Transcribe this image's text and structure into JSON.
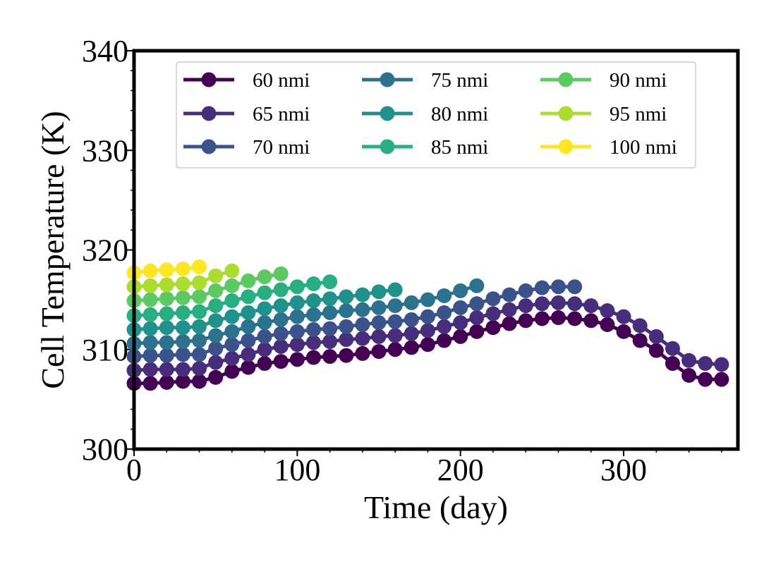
{
  "chart_data": {
    "type": "line",
    "title": "",
    "xlabel": "Time (day)",
    "ylabel": "Cell Temperature (K)",
    "xlim": [
      0,
      370
    ],
    "ylim": [
      300,
      340
    ],
    "xticks": [
      0,
      100,
      200,
      300
    ],
    "yticks": [
      300,
      310,
      320,
      330,
      340
    ],
    "xtick_labels": [
      "0",
      "100",
      "200",
      "300"
    ],
    "ytick_labels": [
      "300",
      "310",
      "320",
      "330",
      "340"
    ],
    "grid": false,
    "legend": {
      "placement": "top-center",
      "columns": 3
    },
    "series": [
      {
        "name": "60 nmi",
        "color": "#440154",
        "x": [
          0,
          10,
          20,
          30,
          40,
          50,
          60,
          70,
          80,
          90,
          100,
          110,
          120,
          130,
          140,
          150,
          160,
          170,
          180,
          190,
          200,
          210,
          220,
          230,
          240,
          250,
          260,
          270,
          280,
          290,
          300,
          310,
          320,
          330,
          340,
          350,
          360
        ],
        "y": [
          306.6,
          306.6,
          306.7,
          306.8,
          306.8,
          307.2,
          307.8,
          308.2,
          308.6,
          308.8,
          309.0,
          309.2,
          309.3,
          309.4,
          309.6,
          309.8,
          310.0,
          310.2,
          310.5,
          310.9,
          311.3,
          311.8,
          312.2,
          312.6,
          312.9,
          313.1,
          313.2,
          313.1,
          312.9,
          312.5,
          311.8,
          310.9,
          309.9,
          308.6,
          307.4,
          307.0,
          307.0
        ]
      },
      {
        "name": "65 nmi",
        "color": "#472d7b",
        "x": [
          0,
          10,
          20,
          30,
          40,
          50,
          60,
          70,
          80,
          90,
          100,
          110,
          120,
          130,
          140,
          150,
          160,
          170,
          180,
          190,
          200,
          210,
          220,
          230,
          240,
          250,
          260,
          270,
          280,
          290,
          300,
          310,
          320,
          330,
          340,
          350,
          360
        ],
        "y": [
          307.9,
          308.0,
          308.0,
          308.0,
          308.1,
          308.7,
          309.1,
          309.5,
          310.0,
          310.3,
          310.5,
          310.7,
          310.8,
          311.0,
          311.1,
          311.3,
          311.4,
          311.6,
          311.9,
          312.3,
          312.7,
          313.2,
          313.6,
          314.0,
          314.4,
          314.6,
          314.7,
          314.6,
          314.4,
          313.9,
          313.3,
          312.4,
          311.3,
          310.1,
          308.9,
          308.6,
          308.5
        ]
      },
      {
        "name": "70 nmi",
        "color": "#3b528b",
        "x": [
          0,
          10,
          20,
          30,
          40,
          50,
          60,
          70,
          80,
          90,
          100,
          110,
          120,
          130,
          140,
          150,
          160,
          170,
          180,
          190,
          200,
          210,
          220,
          230,
          240,
          250,
          260,
          270
        ],
        "y": [
          309.3,
          309.4,
          309.4,
          309.5,
          309.5,
          310.1,
          310.5,
          310.9,
          311.3,
          311.6,
          311.8,
          312.0,
          312.1,
          312.3,
          312.5,
          312.7,
          312.8,
          313.0,
          313.3,
          313.7,
          314.2,
          314.6,
          315.1,
          315.5,
          315.9,
          316.2,
          316.3,
          316.3
        ]
      },
      {
        "name": "75 nmi",
        "color": "#2c728e",
        "x": [
          0,
          10,
          20,
          30,
          40,
          50,
          60,
          70,
          80,
          90,
          100,
          110,
          120,
          130,
          140,
          150,
          160,
          170,
          180,
          190,
          200,
          210
        ],
        "y": [
          310.6,
          310.7,
          310.7,
          310.8,
          310.9,
          311.4,
          311.8,
          312.3,
          312.7,
          313.0,
          313.3,
          313.5,
          313.7,
          313.9,
          314.0,
          314.2,
          314.4,
          314.7,
          315.0,
          315.4,
          315.9,
          316.4
        ]
      },
      {
        "name": "80 nmi",
        "color": "#21918c",
        "x": [
          0,
          10,
          20,
          30,
          40,
          50,
          60,
          70,
          80,
          90,
          100,
          110,
          120,
          130,
          140,
          150,
          160
        ],
        "y": [
          312.0,
          312.1,
          312.2,
          312.2,
          312.3,
          312.9,
          313.3,
          313.7,
          314.1,
          314.4,
          314.7,
          314.9,
          315.1,
          315.3,
          315.5,
          315.8,
          316.0
        ]
      },
      {
        "name": "85 nmi",
        "color": "#28ae80",
        "x": [
          0,
          10,
          20,
          30,
          40,
          50,
          60,
          70,
          80,
          90,
          100,
          110,
          120
        ],
        "y": [
          313.4,
          313.5,
          313.6,
          313.7,
          313.8,
          314.4,
          314.9,
          315.3,
          315.7,
          316.0,
          316.3,
          316.6,
          316.8
        ]
      },
      {
        "name": "90 nmi",
        "color": "#5ec962",
        "x": [
          0,
          10,
          20,
          30,
          40,
          50,
          60,
          70,
          80,
          90
        ],
        "y": [
          314.9,
          315.0,
          315.1,
          315.2,
          315.3,
          315.9,
          316.4,
          316.9,
          317.3,
          317.6
        ]
      },
      {
        "name": "95 nmi",
        "color": "#addc30",
        "x": [
          0,
          10,
          20,
          30,
          40,
          50,
          60
        ],
        "y": [
          316.3,
          316.4,
          316.5,
          316.6,
          316.7,
          317.4,
          317.9
        ]
      },
      {
        "name": "100 nmi",
        "color": "#fde725",
        "x": [
          0,
          10,
          20,
          30,
          40
        ],
        "y": [
          317.7,
          317.9,
          318.0,
          318.1,
          318.3
        ]
      }
    ]
  }
}
